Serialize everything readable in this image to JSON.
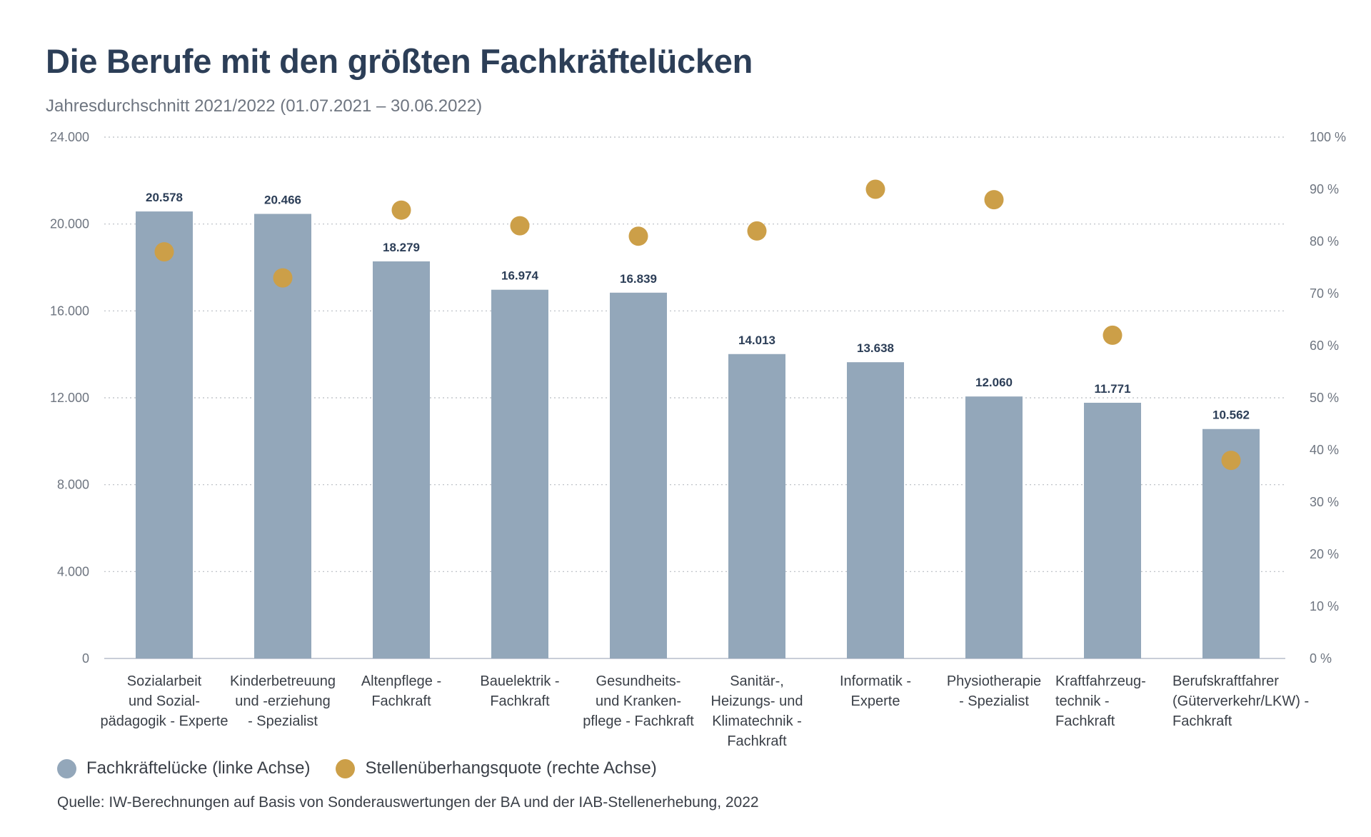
{
  "title": "Die Berufe mit den größten Fachkräftelücken",
  "subtitle": "Jahresdurchschnitt 2021/2022 (01.07.2021 – 30.06.2022)",
  "source": "Quelle: IW-Berechnungen auf Basis von Sonderauswertungen der BA und der IAB-Stellenerhebung, 2022",
  "colors": {
    "bar": "#93a7ba",
    "dot": "#cc9f48",
    "grid": "#b8bcc2",
    "axis": "#c9cdd8"
  },
  "chart_data": {
    "type": "bar",
    "categories": [
      [
        "Sozialarbeit",
        "und Sozial-",
        "pädagogik - Experte"
      ],
      [
        "Kinderbetreuung",
        "und -erziehung",
        "- Spezialist"
      ],
      [
        "Altenpflege -",
        "Fachkraft"
      ],
      [
        "Bauelektrik -",
        "Fachkraft"
      ],
      [
        "Gesundheits-",
        "und Kranken-",
        "pflege - Fachkraft"
      ],
      [
        "Sanitär-,",
        "Heizungs- und",
        "Klimatechnik -",
        "Fachkraft"
      ],
      [
        "Informatik -",
        "Experte"
      ],
      [
        "Physiotherapie",
        "- Spezialist"
      ],
      [
        "Kraftfahrzeug-",
        "technik -",
        "Fachkraft"
      ],
      [
        "Berufskraftfahrer",
        "(Güterverkehr/LKW) -",
        "Fachkraft"
      ]
    ],
    "series": [
      {
        "name": "Fachkräftelücke (linke Achse)",
        "type": "bar",
        "axis": "left",
        "values": [
          20578,
          20466,
          18279,
          16974,
          16839,
          14013,
          13638,
          12060,
          11771,
          10562
        ],
        "labels": [
          "20.578",
          "20.466",
          "18.279",
          "16.974",
          "16.839",
          "14.013",
          "13.638",
          "12.060",
          "11.771",
          "10.562"
        ]
      },
      {
        "name": "Stellenüberhangsquote (rechte Achse)",
        "type": "scatter",
        "axis": "right",
        "values": [
          78,
          73,
          86,
          83,
          81,
          82,
          90,
          88,
          62,
          38
        ]
      }
    ],
    "ylim_left": [
      0,
      24000
    ],
    "yticks_left": [
      "0",
      "4.000",
      "8.000",
      "12.000",
      "16.000",
      "20.000",
      "24.000"
    ],
    "ylim_right": [
      0,
      100
    ],
    "yticks_right": [
      "0 %",
      "10 %",
      "20 %",
      "30 %",
      "40 %",
      "50 %",
      "60 %",
      "70 %",
      "80 %",
      "90 %",
      "100 %"
    ],
    "grid": true,
    "legend_position": "bottom-left"
  }
}
